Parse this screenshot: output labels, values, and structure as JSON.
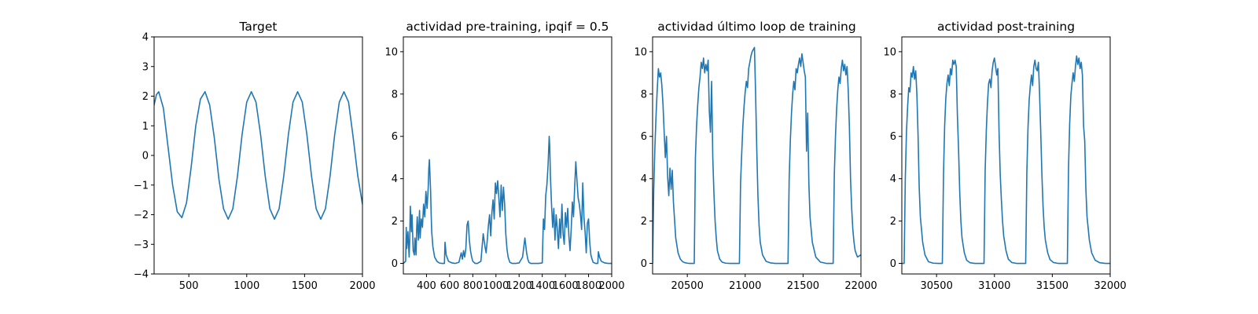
{
  "chart_data": [
    {
      "type": "line",
      "title": "Target",
      "xlabel": "",
      "ylabel": "",
      "xlim": [
        200,
        2000
      ],
      "ylim": [
        -4,
        4
      ],
      "xticks": [
        500,
        1000,
        1500,
        2000
      ],
      "yticks": [
        -4,
        -3,
        -2,
        -1,
        0,
        1,
        2,
        3,
        4
      ],
      "grid": false,
      "series": [
        {
          "color": "#1f77b4",
          "x": [
            200,
            220,
            240,
            280,
            320,
            360,
            400,
            440,
            480,
            520,
            560,
            600,
            640,
            680,
            720,
            760,
            800,
            840,
            880,
            920,
            960,
            1000,
            1040,
            1080,
            1120,
            1160,
            1200,
            1240,
            1280,
            1320,
            1360,
            1400,
            1440,
            1480,
            1520,
            1560,
            1600,
            1640,
            1680,
            1720,
            1760,
            1800,
            1840,
            1880,
            1920,
            1960,
            2000
          ],
          "y": [
            1.7,
            2.05,
            2.15,
            1.6,
            0.3,
            -1.0,
            -1.9,
            -2.1,
            -1.6,
            -0.4,
            1.0,
            1.9,
            2.15,
            1.7,
            0.6,
            -0.8,
            -1.8,
            -2.15,
            -1.8,
            -0.7,
            0.7,
            1.8,
            2.15,
            1.8,
            0.7,
            -0.7,
            -1.8,
            -2.15,
            -1.8,
            -0.7,
            0.7,
            1.8,
            2.15,
            1.8,
            0.7,
            -0.7,
            -1.8,
            -2.15,
            -1.8,
            -0.7,
            0.7,
            1.8,
            2.15,
            1.8,
            0.6,
            -0.7,
            -1.65
          ]
        }
      ]
    },
    {
      "type": "line",
      "title": "actividad pre-training, ipqif = 0.5",
      "xlabel": "",
      "ylabel": "",
      "xlim": [
        200,
        2000
      ],
      "ylim": [
        -0.5,
        10.7
      ],
      "xticks": [
        400,
        600,
        800,
        1000,
        1200,
        1400,
        1600,
        1800,
        2000
      ],
      "yticks": [
        0,
        2,
        4,
        6,
        8,
        10
      ],
      "grid": false,
      "series": [
        {
          "color": "#1f77b4",
          "x": [
            200,
            220,
            225,
            230,
            240,
            250,
            255,
            260,
            270,
            275,
            285,
            295,
            300,
            310,
            315,
            320,
            330,
            340,
            345,
            355,
            365,
            375,
            385,
            395,
            405,
            415,
            420,
            425,
            430,
            435,
            440,
            445,
            455,
            470,
            490,
            510,
            530,
            555,
            560,
            570,
            590,
            620,
            650,
            680,
            700,
            710,
            720,
            730,
            740,
            750,
            760,
            770,
            780,
            790,
            800,
            820,
            840,
            870,
            890,
            905,
            915,
            925,
            935,
            945,
            955,
            965,
            975,
            985,
            995,
            1005,
            1015,
            1025,
            1035,
            1045,
            1055,
            1065,
            1075,
            1085,
            1095,
            1105,
            1120,
            1140,
            1170,
            1200,
            1230,
            1250,
            1265,
            1275,
            1285,
            1300,
            1330,
            1370,
            1400,
            1410,
            1420,
            1430,
            1440,
            1450,
            1455,
            1460,
            1465,
            1470,
            1480,
            1490,
            1500,
            1510,
            1520,
            1530,
            1540,
            1550,
            1560,
            1570,
            1580,
            1590,
            1600,
            1610,
            1620,
            1630,
            1640,
            1650,
            1660,
            1670,
            1680,
            1690,
            1700,
            1710,
            1720,
            1730,
            1740,
            1750,
            1760,
            1770,
            1780,
            1790,
            1800,
            1810,
            1820,
            1830,
            1840,
            1860,
            1880,
            1885,
            1895,
            1910,
            1940,
            1970,
            2000
          ],
          "y": [
            0,
            0.1,
            1.7,
            0.7,
            1.5,
            0.3,
            1.1,
            2.7,
            1.5,
            2.3,
            0.6,
            0.4,
            1.2,
            0.4,
            1.6,
            2.2,
            1.1,
            2.5,
            1.2,
            2.1,
            1.7,
            2.8,
            2.2,
            3.4,
            2.6,
            3.6,
            4.5,
            4.9,
            4.2,
            3.5,
            2.4,
            1.5,
            0.8,
            0.3,
            0.1,
            0.02,
            0,
            0,
            1.0,
            0.4,
            0.1,
            0.02,
            0,
            0.05,
            0.5,
            0.2,
            0.6,
            0.3,
            0.7,
            1.8,
            2.0,
            1.1,
            0.6,
            0.3,
            0.1,
            0,
            0,
            0.1,
            1.4,
            0.8,
            0.5,
            1.1,
            1.8,
            2.3,
            1.3,
            2.4,
            3.0,
            2.1,
            3.8,
            3.3,
            3.9,
            3.1,
            2.2,
            3.7,
            2.5,
            3.6,
            2.8,
            1.4,
            0.7,
            0.3,
            0.05,
            0,
            0,
            0.02,
            0.3,
            1.2,
            0.5,
            0.2,
            0.05,
            0,
            0,
            0,
            0.02,
            2.1,
            1.6,
            3.2,
            3.7,
            4.6,
            5.3,
            6.0,
            5.5,
            4.2,
            2.8,
            1.7,
            2.6,
            1.1,
            2.3,
            1.6,
            0.7,
            2.1,
            1.2,
            2.8,
            1.4,
            0.9,
            2.4,
            1.7,
            2.6,
            1.3,
            0.6,
            1.6,
            2.9,
            2.2,
            3.6,
            4.8,
            3.9,
            3.1,
            2.8,
            2.3,
            1.6,
            3.8,
            2.2,
            1.5,
            0.5,
            1.9,
            2.1,
            1.0,
            0.4,
            0.2,
            0.05,
            0,
            0,
            0.55,
            0.3,
            0.1,
            0.02,
            0,
            0
          ]
        }
      ]
    },
    {
      "type": "line",
      "title": "actividad último loop de training",
      "xlabel": "",
      "ylabel": "",
      "xlim": [
        20200,
        22000
      ],
      "ylim": [
        -0.5,
        10.7
      ],
      "xticks": [
        20500,
        21000,
        21500,
        22000
      ],
      "yticks": [
        0,
        2,
        4,
        6,
        8,
        10
      ],
      "grid": false,
      "series": [
        {
          "color": "#1f77b4",
          "x": [
            20200,
            20210,
            20220,
            20230,
            20240,
            20250,
            20260,
            20270,
            20280,
            20290,
            20300,
            20310,
            20320,
            20330,
            20340,
            20350,
            20360,
            20370,
            20380,
            20400,
            20420,
            20440,
            20460,
            20480,
            20500,
            20520,
            20540,
            20560,
            20570,
            20580,
            20590,
            20600,
            20610,
            20620,
            20630,
            20640,
            20650,
            20660,
            20670,
            20680,
            20690,
            20700,
            20710,
            20720,
            20730,
            20740,
            20750,
            20760,
            20780,
            20800,
            20830,
            20870,
            20920,
            20950,
            20960,
            20970,
            20980,
            20990,
            21000,
            21010,
            21020,
            21030,
            21040,
            21050,
            21060,
            21070,
            21080,
            21090,
            21100,
            21110,
            21120,
            21130,
            21150,
            21180,
            21220,
            21260,
            21300,
            21340,
            21370,
            21380,
            21390,
            21400,
            21410,
            21420,
            21430,
            21440,
            21450,
            21460,
            21470,
            21480,
            21490,
            21500,
            21510,
            21520,
            21530,
            21540,
            21550,
            21560,
            21580,
            21610,
            21650,
            21700,
            21740,
            21760,
            21770,
            21780,
            21790,
            21800,
            21810,
            21820,
            21830,
            21840,
            21850,
            21860,
            21870,
            21880,
            21890,
            21900,
            21910,
            21920,
            21930,
            21940,
            21950,
            21970,
            22000
          ],
          "y": [
            0,
            3.5,
            5.5,
            7.0,
            8.2,
            9.2,
            8.8,
            9.0,
            8.4,
            7.5,
            6.2,
            5.0,
            6.0,
            4.1,
            3.2,
            4.5,
            3.5,
            4.4,
            2.9,
            1.2,
            0.5,
            0.2,
            0.08,
            0.03,
            0.01,
            0,
            0,
            0,
            5.0,
            6.5,
            7.5,
            8.3,
            8.8,
            9.5,
            9.2,
            9.7,
            9.0,
            9.4,
            9.1,
            9.6,
            7.2,
            6.2,
            8.6,
            5.0,
            3.3,
            2.0,
            1.2,
            0.6,
            0.2,
            0.06,
            0.01,
            0,
            0,
            0,
            3.8,
            5.2,
            6.5,
            7.4,
            8.1,
            8.6,
            8.3,
            9.2,
            9.5,
            9.8,
            10.0,
            10.1,
            10.2,
            8.0,
            5.4,
            3.2,
            1.8,
            1.0,
            0.4,
            0.1,
            0.02,
            0,
            0,
            0,
            0,
            4.0,
            5.8,
            7.1,
            8.0,
            8.6,
            8.2,
            9.2,
            9.0,
            9.4,
            9.7,
            9.3,
            9.9,
            9.5,
            9.1,
            8.8,
            5.3,
            7.1,
            3.8,
            2.2,
            1.0,
            0.3,
            0.06,
            0,
            0,
            0,
            4.2,
            6.0,
            7.3,
            8.2,
            8.8,
            8.5,
            9.2,
            9.6,
            9.1,
            9.4,
            8.9,
            9.3,
            8.2,
            6.5,
            4.0,
            2.6,
            1.6,
            1.0,
            0.6,
            0.3,
            0.4
          ]
        }
      ]
    },
    {
      "type": "line",
      "title": "actividad post-training",
      "xlabel": "",
      "ylabel": "",
      "xlim": [
        30200,
        32000
      ],
      "ylim": [
        -0.5,
        10.7
      ],
      "xticks": [
        30500,
        31000,
        31500,
        32000
      ],
      "yticks": [
        0,
        2,
        4,
        6,
        8,
        10
      ],
      "grid": false,
      "series": [
        {
          "color": "#1f77b4",
          "x": [
            30200,
            30220,
            30230,
            30240,
            30250,
            30260,
            30270,
            30280,
            30290,
            30300,
            30310,
            30320,
            30330,
            30340,
            30350,
            30360,
            30380,
            30400,
            30430,
            30470,
            30520,
            30550,
            30560,
            30570,
            30580,
            30590,
            30600,
            30610,
            30620,
            30630,
            30640,
            30650,
            30660,
            30670,
            30680,
            30690,
            30700,
            30710,
            30720,
            30740,
            30760,
            30790,
            30830,
            30880,
            30910,
            30920,
            30930,
            30940,
            30950,
            30960,
            30970,
            30980,
            30990,
            31000,
            31010,
            31020,
            31030,
            31040,
            31050,
            31060,
            31070,
            31080,
            31100,
            31120,
            31150,
            31190,
            31240,
            31270,
            31280,
            31290,
            31300,
            31310,
            31320,
            31330,
            31340,
            31350,
            31360,
            31370,
            31380,
            31390,
            31400,
            31410,
            31420,
            31430,
            31440,
            31460,
            31480,
            31510,
            31550,
            31600,
            31630,
            31640,
            31650,
            31660,
            31670,
            31680,
            31690,
            31700,
            31710,
            31720,
            31730,
            31740,
            31750,
            31760,
            31770,
            31780,
            31790,
            31800,
            31820,
            31840,
            31870,
            31910,
            31960,
            32000
          ],
          "y": [
            0,
            0,
            4.0,
            6.2,
            7.4,
            8.3,
            8.1,
            9.0,
            8.8,
            9.3,
            8.7,
            9.1,
            8.0,
            6.1,
            3.6,
            2.2,
            1.0,
            0.4,
            0.08,
            0.01,
            0,
            0,
            4.2,
            6.5,
            7.8,
            8.5,
            8.9,
            8.4,
            9.2,
            8.9,
            9.6,
            9.4,
            9.6,
            9.3,
            7.0,
            5.4,
            3.4,
            2.0,
            1.2,
            0.5,
            0.15,
            0.03,
            0,
            0,
            0,
            4.4,
            6.3,
            7.6,
            8.5,
            8.7,
            8.3,
            9.1,
            9.5,
            9.7,
            9.3,
            8.9,
            9.2,
            6.2,
            4.2,
            3.0,
            2.0,
            1.3,
            0.6,
            0.2,
            0.04,
            0,
            0,
            0,
            4.3,
            6.4,
            7.7,
            8.4,
            8.9,
            8.4,
            9.3,
            9.6,
            9.2,
            9.1,
            9.5,
            8.0,
            6.2,
            4.2,
            2.7,
            1.7,
            1.1,
            0.5,
            0.18,
            0.04,
            0,
            0,
            0,
            4.5,
            6.6,
            7.9,
            8.5,
            9.0,
            8.6,
            9.3,
            9.8,
            9.4,
            9.7,
            9.2,
            9.5,
            8.9,
            6.5,
            5.8,
            3.5,
            2.2,
            1.1,
            0.5,
            0.15,
            0.03,
            0,
            0
          ]
        }
      ]
    }
  ]
}
